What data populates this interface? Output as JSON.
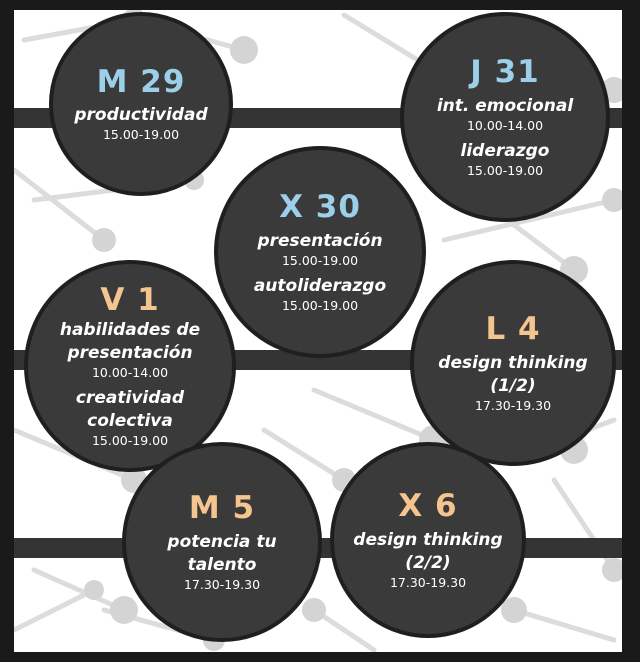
{
  "sessions": [
    {
      "day": "M 29",
      "items": [
        {
          "topic": "productividad",
          "time": "15.00-19.00"
        }
      ]
    },
    {
      "day": "X 30",
      "items": [
        {
          "topic": "presentación",
          "time": "15.00-19.00"
        },
        {
          "topic": "autoliderazgo",
          "time": "15.00-19.00"
        }
      ]
    },
    {
      "day": "J 31",
      "items": [
        {
          "topic": "int. emocional",
          "time": "10.00-14.00"
        },
        {
          "topic": "liderazgo",
          "time": "15.00-19.00"
        }
      ]
    },
    {
      "day": "V 1",
      "items": [
        {
          "topic": "habilidades de presentación",
          "time": "10.00-14.00"
        },
        {
          "topic": "creatividad colectiva",
          "time": "15.00-19.00"
        }
      ]
    },
    {
      "day": "L 4",
      "items": [
        {
          "topic": "design thinking (1/2)",
          "time": "17.30-19.30"
        }
      ]
    },
    {
      "day": "M 5",
      "items": [
        {
          "topic": "potencia tu talento",
          "time": "17.30-19.30"
        }
      ]
    },
    {
      "day": "X 6",
      "items": [
        {
          "topic": "design thinking (2/2)",
          "time": "17.30-19.30"
        }
      ]
    }
  ],
  "colors": {
    "day_blue": "#9ccfe9",
    "day_orange": "#f5c58f",
    "circle_fill": "#3a3a3a",
    "band": "#343434"
  }
}
